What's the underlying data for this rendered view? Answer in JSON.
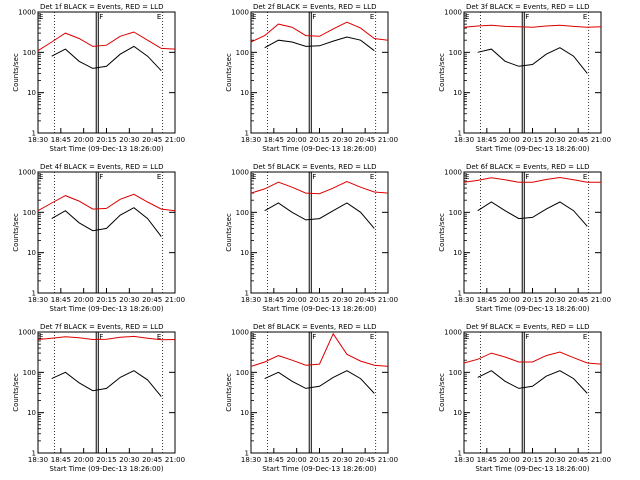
{
  "colors": {
    "events": "#000000",
    "lld": "#dd0000",
    "axis": "#000000"
  },
  "panel_common": {
    "ylabel": "Counts/sec",
    "xlabel": "Start Time (09-Dec-13 18:26:00)",
    "xticklabels": [
      "18:30",
      "18:45",
      "20:00",
      "20:15",
      "20:30",
      "20:45",
      "21:00"
    ],
    "yticklabels": [
      "1",
      "10",
      "100",
      "1000"
    ],
    "marker_labels": [
      "E",
      "F",
      "E"
    ],
    "ylim": [
      1,
      1000
    ],
    "y_scale": "log"
  },
  "chart_data": [
    {
      "type": "line",
      "title": "Det 1f BLACK = Events, RED = LLD",
      "series": [
        {
          "name": "Events",
          "color": "#000000",
          "x": [
            0,
            0.1,
            0.2,
            0.3,
            0.4,
            0.5,
            0.6,
            0.7,
            0.8,
            0.9,
            1.0
          ],
          "values": [
            null,
            80,
            120,
            60,
            40,
            45,
            90,
            140,
            80,
            35,
            null
          ]
        },
        {
          "name": "LLD",
          "color": "#dd0000",
          "x": [
            0,
            0.1,
            0.2,
            0.3,
            0.4,
            0.5,
            0.6,
            0.7,
            0.8,
            0.9,
            1.0
          ],
          "values": [
            110,
            180,
            300,
            220,
            140,
            150,
            250,
            320,
            200,
            125,
            120
          ]
        }
      ]
    },
    {
      "type": "line",
      "title": "Det 2f BLACK = Events, RED = LLD",
      "series": [
        {
          "name": "Events",
          "color": "#000000",
          "x": [
            0,
            0.1,
            0.2,
            0.3,
            0.4,
            0.5,
            0.6,
            0.7,
            0.8,
            0.9,
            1.0
          ],
          "values": [
            null,
            130,
            200,
            180,
            140,
            145,
            190,
            240,
            200,
            110,
            null
          ]
        },
        {
          "name": "LLD",
          "color": "#dd0000",
          "x": [
            0,
            0.1,
            0.2,
            0.3,
            0.4,
            0.5,
            0.6,
            0.7,
            0.8,
            0.9,
            1.0
          ],
          "values": [
            180,
            260,
            500,
            420,
            260,
            250,
            380,
            560,
            400,
            220,
            200
          ]
        }
      ]
    },
    {
      "type": "line",
      "title": "Det 3f BLACK = Events, RED = LLD",
      "series": [
        {
          "name": "Events",
          "color": "#000000",
          "x": [
            0,
            0.1,
            0.2,
            0.3,
            0.4,
            0.5,
            0.6,
            0.7,
            0.8,
            0.9,
            1.0
          ],
          "values": [
            null,
            100,
            120,
            60,
            45,
            50,
            90,
            130,
            80,
            30,
            null
          ]
        },
        {
          "name": "LLD",
          "color": "#dd0000",
          "x": [
            0,
            0.1,
            0.2,
            0.3,
            0.4,
            0.5,
            0.6,
            0.7,
            0.8,
            0.9,
            1.0
          ],
          "values": [
            420,
            450,
            470,
            440,
            430,
            420,
            450,
            470,
            440,
            420,
            430
          ]
        }
      ]
    },
    {
      "type": "line",
      "title": "Det 4f BLACK = Events, RED = LLD",
      "series": [
        {
          "name": "Events",
          "color": "#000000",
          "x": [
            0,
            0.1,
            0.2,
            0.3,
            0.4,
            0.5,
            0.6,
            0.7,
            0.8,
            0.9,
            1.0
          ],
          "values": [
            null,
            70,
            110,
            55,
            35,
            40,
            85,
            130,
            70,
            25,
            null
          ]
        },
        {
          "name": "LLD",
          "color": "#dd0000",
          "x": [
            0,
            0.1,
            0.2,
            0.3,
            0.4,
            0.5,
            0.6,
            0.7,
            0.8,
            0.9,
            1.0
          ],
          "values": [
            110,
            170,
            260,
            190,
            120,
            125,
            210,
            280,
            180,
            120,
            110
          ]
        }
      ]
    },
    {
      "type": "line",
      "title": "Det 5f BLACK = Events, RED = LLD",
      "series": [
        {
          "name": "Events",
          "color": "#000000",
          "x": [
            0,
            0.1,
            0.2,
            0.3,
            0.4,
            0.5,
            0.6,
            0.7,
            0.8,
            0.9,
            1.0
          ],
          "values": [
            null,
            110,
            170,
            100,
            65,
            70,
            110,
            170,
            100,
            40,
            null
          ]
        },
        {
          "name": "LLD",
          "color": "#dd0000",
          "x": [
            0,
            0.1,
            0.2,
            0.3,
            0.4,
            0.5,
            0.6,
            0.7,
            0.8,
            0.9,
            1.0
          ],
          "values": [
            300,
            380,
            560,
            420,
            300,
            290,
            400,
            580,
            420,
            320,
            300
          ]
        }
      ]
    },
    {
      "type": "line",
      "title": "Det 6f BLACK = Events, RED = LLD",
      "series": [
        {
          "name": "Events",
          "color": "#000000",
          "x": [
            0,
            0.1,
            0.2,
            0.3,
            0.4,
            0.5,
            0.6,
            0.7,
            0.8,
            0.9,
            1.0
          ],
          "values": [
            null,
            110,
            180,
            110,
            70,
            75,
            120,
            180,
            110,
            45,
            null
          ]
        },
        {
          "name": "LLD",
          "color": "#dd0000",
          "x": [
            0,
            0.1,
            0.2,
            0.3,
            0.4,
            0.5,
            0.6,
            0.7,
            0.8,
            0.9,
            1.0
          ],
          "values": [
            560,
            620,
            720,
            640,
            560,
            560,
            650,
            730,
            640,
            560,
            560
          ]
        }
      ]
    },
    {
      "type": "line",
      "title": "Det 7f BLACK = Events, RED = LLD",
      "series": [
        {
          "name": "Events",
          "color": "#000000",
          "x": [
            0,
            0.1,
            0.2,
            0.3,
            0.4,
            0.5,
            0.6,
            0.7,
            0.8,
            0.9,
            1.0
          ],
          "values": [
            null,
            70,
            100,
            55,
            35,
            40,
            75,
            110,
            65,
            25,
            null
          ]
        },
        {
          "name": "LLD",
          "color": "#dd0000",
          "x": [
            0,
            0.1,
            0.2,
            0.3,
            0.4,
            0.5,
            0.6,
            0.7,
            0.8,
            0.9,
            1.0
          ],
          "values": [
            650,
            700,
            760,
            720,
            650,
            660,
            740,
            780,
            700,
            640,
            650
          ]
        }
      ]
    },
    {
      "type": "line",
      "title": "Det 8f BLACK = Events, RED = LLD",
      "series": [
        {
          "name": "Events",
          "color": "#000000",
          "x": [
            0,
            0.1,
            0.2,
            0.3,
            0.4,
            0.5,
            0.6,
            0.7,
            0.8,
            0.9,
            1.0
          ],
          "values": [
            null,
            70,
            100,
            60,
            40,
            45,
            75,
            110,
            70,
            30,
            null
          ]
        },
        {
          "name": "LLD",
          "color": "#dd0000",
          "x": [
            0,
            0.1,
            0.2,
            0.3,
            0.4,
            0.5,
            0.6,
            0.7,
            0.8,
            0.9,
            1.0
          ],
          "values": [
            140,
            180,
            260,
            200,
            150,
            160,
            900,
            280,
            190,
            150,
            140
          ]
        }
      ]
    },
    {
      "type": "line",
      "title": "Det 9f BLACK = Events, RED = LLD",
      "series": [
        {
          "name": "Events",
          "color": "#000000",
          "x": [
            0,
            0.1,
            0.2,
            0.3,
            0.4,
            0.5,
            0.6,
            0.7,
            0.8,
            0.9,
            1.0
          ],
          "values": [
            null,
            75,
            110,
            60,
            40,
            45,
            80,
            110,
            70,
            30,
            null
          ]
        },
        {
          "name": "LLD",
          "color": "#dd0000",
          "x": [
            0,
            0.1,
            0.2,
            0.3,
            0.4,
            0.5,
            0.6,
            0.7,
            0.8,
            0.9,
            1.0
          ],
          "values": [
            170,
            210,
            300,
            240,
            180,
            180,
            260,
            320,
            230,
            170,
            160
          ]
        }
      ]
    }
  ]
}
